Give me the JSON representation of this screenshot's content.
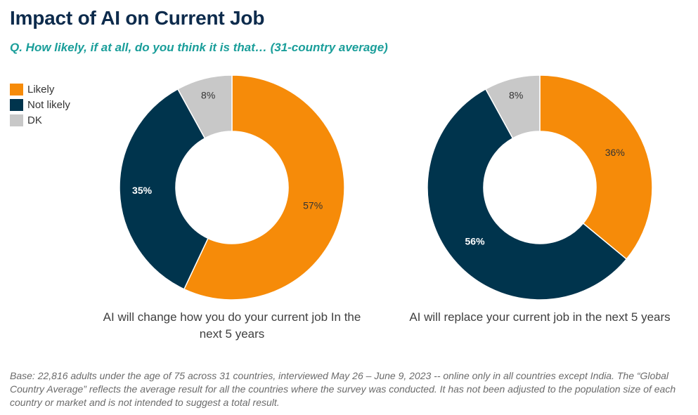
{
  "header": {
    "title": "Impact of AI on Current Job",
    "subtitle": "Q. How likely, if at all, do you think it is that… (31-country average)"
  },
  "legend": [
    {
      "label": "Likely",
      "color": "#f68b09"
    },
    {
      "label": "Not likely",
      "color": "#00344d"
    },
    {
      "label": "DK",
      "color": "#c8c8c8"
    }
  ],
  "footnote": "Base: 22,816 adults under the age of 75 across 31 countries, interviewed May 26 – June 9, 2023 -- online only in all countries except India. The “Global Country Average” reflects the average result for all the countries where the survey was conducted. It has not been adjusted to the population size of each country or market and is not intended to suggest a total result.",
  "chart_data": [
    {
      "type": "pie",
      "title": "AI will change how you do your current job In the next 5 years",
      "slices": [
        {
          "name": "Likely",
          "value": 57,
          "label": "57%",
          "color": "#f68b09",
          "label_color": "#333333"
        },
        {
          "name": "Not likely",
          "value": 35,
          "label": "35%",
          "color": "#00344d",
          "label_color": "#ffffff"
        },
        {
          "name": "DK",
          "value": 8,
          "label": "8%",
          "color": "#c8c8c8",
          "label_color": "#333333"
        }
      ]
    },
    {
      "type": "pie",
      "title": "AI will replace your current job in the next 5 years",
      "slices": [
        {
          "name": "Likely",
          "value": 36,
          "label": "36%",
          "color": "#f68b09",
          "label_color": "#333333"
        },
        {
          "name": "Not likely",
          "value": 56,
          "label": "56%",
          "color": "#00344d",
          "label_color": "#ffffff"
        },
        {
          "name": "DK",
          "value": 8,
          "label": "8%",
          "color": "#c8c8c8",
          "label_color": "#333333"
        }
      ]
    }
  ]
}
